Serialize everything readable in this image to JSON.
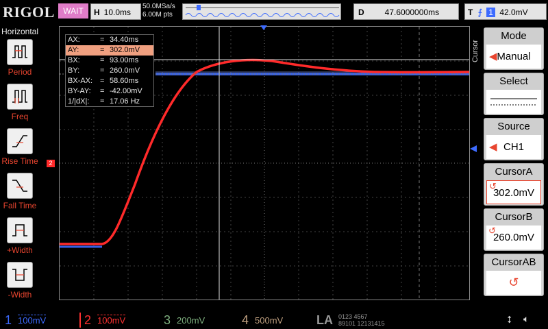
{
  "topbar": {
    "brand": "RIGOL",
    "run_status": "WAIT",
    "horizontal_label": "H",
    "timebase": "10.0ms",
    "sample_rate": "50.0MSa/s",
    "memory_depth": "6.00M pts",
    "delay_label": "D",
    "delay": "47.6000000ms",
    "trigger_label": "T",
    "trigger_channel": "1",
    "trigger_level": "42.0mV"
  },
  "left_menu": {
    "title": "Horizontal",
    "items": [
      {
        "label": "Period",
        "icon": "period-icon"
      },
      {
        "label": "Freq",
        "icon": "freq-icon"
      },
      {
        "label": "Rise Time",
        "icon": "rise-time-icon"
      },
      {
        "label": "Fall Time",
        "icon": "fall-time-icon"
      },
      {
        "label": "+Width",
        "icon": "positive-width-icon"
      },
      {
        "label": "-Width",
        "icon": "negative-width-icon"
      }
    ]
  },
  "cursor_readout": {
    "rows": [
      {
        "key": "AX:",
        "value": "34.40ms"
      },
      {
        "key": "AY:",
        "value": "302.0mV"
      },
      {
        "key": "BX:",
        "value": "93.00ms"
      },
      {
        "key": "BY:",
        "value": "260.0mV"
      },
      {
        "key": "BX-AX:",
        "value": "58.60ms"
      },
      {
        "key": "BY-AY:",
        "value": "-42.00mV"
      },
      {
        "key": "1/|dX|:",
        "value": "17.06 Hz"
      }
    ]
  },
  "right_menu": {
    "side_title": "Cursor",
    "mode_title": "Mode",
    "mode_value": "Manual",
    "select_title": "Select",
    "source_title": "Source",
    "source_value": "CH1",
    "cursor_a_title": "CursorA",
    "cursor_a_value": "302.0mV",
    "cursor_b_title": "CursorB",
    "cursor_b_value": "260.0mV",
    "cursor_ab_title": "CursorAB"
  },
  "channels": [
    {
      "num": "1",
      "scale": "100mV",
      "color": "#3d6bff"
    },
    {
      "num": "2",
      "scale": "100mV",
      "color": "#ff3030"
    },
    {
      "num": "3",
      "scale": "200mV",
      "color": "#7fb07f"
    },
    {
      "num": "4",
      "scale": "500mV",
      "color": "#c0a080"
    }
  ],
  "la": {
    "label": "LA",
    "bits_top": "0123 4567",
    "bits_bottom": "89101 12131415"
  },
  "markers": {
    "ch2_label": "2"
  },
  "colors": {
    "ch1": "#3d6bff",
    "ch2": "#ff2a2a",
    "accent": "#e8452f",
    "grid": "#555555"
  }
}
